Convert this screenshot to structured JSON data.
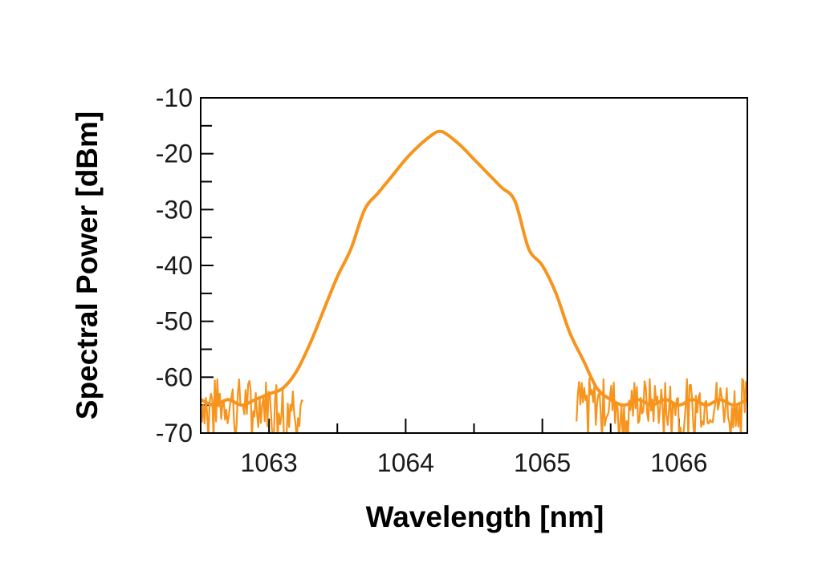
{
  "chart_data": {
    "type": "line",
    "title": "",
    "xlabel": "Wavelength [nm]",
    "ylabel": "Spectral Power [dBm]",
    "xlim": [
      1062.5,
      1066.5
    ],
    "ylim": [
      -70,
      -10
    ],
    "xticks": [
      1063,
      1064,
      1065,
      1066
    ],
    "xtick_labels": [
      "1063",
      "1064",
      "1065",
      "1066"
    ],
    "yticks": [
      -10,
      -20,
      -30,
      -40,
      -50,
      -60,
      -70
    ],
    "ytick_labels": [
      "-10",
      "-20",
      "-30",
      "-40",
      "-50",
      "-60",
      "-70"
    ],
    "grid": false,
    "legend": "none",
    "series": [
      {
        "color": "#F7941D",
        "x": [
          1062.5,
          1062.6,
          1062.7,
          1062.8,
          1062.9,
          1063.0,
          1063.1,
          1063.2,
          1063.3,
          1063.4,
          1063.5,
          1063.6,
          1063.7,
          1063.8,
          1063.9,
          1064.0,
          1064.1,
          1064.2,
          1064.25,
          1064.3,
          1064.4,
          1064.5,
          1064.6,
          1064.7,
          1064.8,
          1064.9,
          1065.0,
          1065.1,
          1065.2,
          1065.3,
          1065.4,
          1065.5,
          1065.6,
          1065.7,
          1065.8,
          1065.9,
          1066.0,
          1066.1,
          1066.2,
          1066.3,
          1066.4,
          1066.5
        ],
        "y": [
          -64,
          -65,
          -64,
          -65,
          -64,
          -63,
          -62,
          -59,
          -54,
          -48,
          -42,
          -37,
          -30,
          -27,
          -24,
          -21,
          -18.5,
          -16.5,
          -16,
          -16.5,
          -18.5,
          -21,
          -23.5,
          -26,
          -28.5,
          -37,
          -40,
          -45,
          -52,
          -57,
          -62,
          -64,
          -65,
          -64,
          -65,
          -64,
          -65,
          -64,
          -65,
          -64,
          -65,
          -64
        ]
      }
    ],
    "noise_floor": {
      "center": -64.5,
      "min": -70,
      "max": -57,
      "x_ranges": [
        [
          1062.5,
          1063.25
        ],
        [
          1065.25,
          1066.5
        ]
      ]
    }
  }
}
